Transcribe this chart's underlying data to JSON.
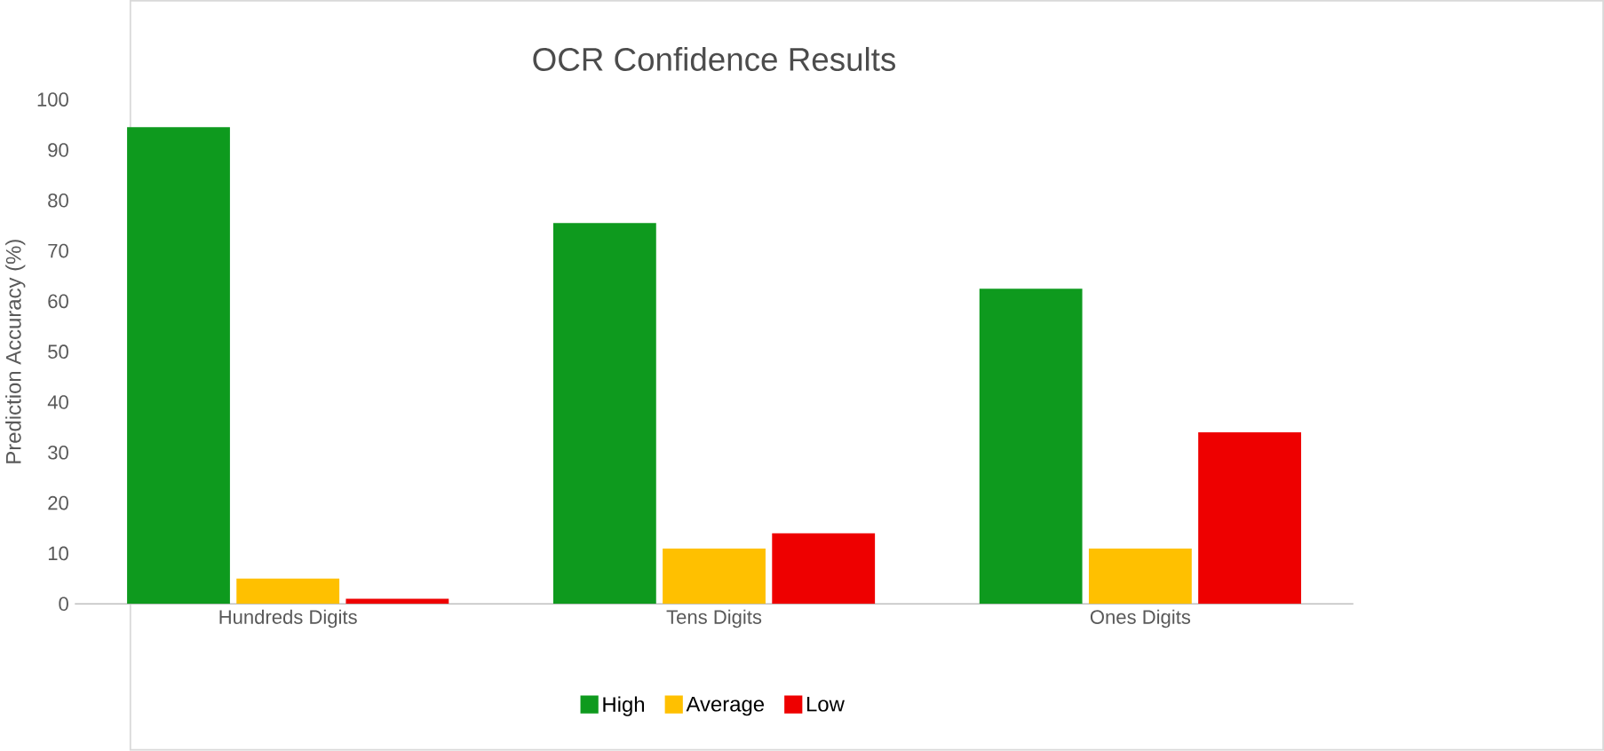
{
  "chart_data": {
    "type": "bar",
    "title": "OCR Confidence Results",
    "ylabel": "Prediction Accuracy (%)",
    "categories": [
      "Hundreds Digits",
      "Tens Digits",
      "Ones Digits"
    ],
    "series": [
      {
        "name": "High",
        "color": "#0e9a1e",
        "values": [
          94.5,
          75.5,
          62.5
        ]
      },
      {
        "name": "Average",
        "color": "#ffc000",
        "values": [
          5,
          11,
          11
        ]
      },
      {
        "name": "Low",
        "color": "#ee0000",
        "values": [
          1,
          14,
          34
        ]
      }
    ],
    "ylim": [
      0,
      100
    ],
    "yticks": [
      0,
      10,
      20,
      30,
      40,
      50,
      60,
      70,
      80,
      90,
      100
    ],
    "legend": "bottom"
  }
}
